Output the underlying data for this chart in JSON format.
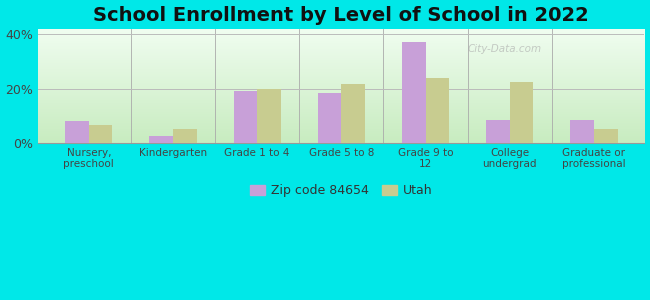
{
  "title": "School Enrollment by Level of School in 2022",
  "categories": [
    "Nursery,\npreschool",
    "Kindergarten",
    "Grade 1 to 4",
    "Grade 5 to 8",
    "Grade 9 to\n12",
    "College\nundergrad",
    "Graduate or\nprofessional"
  ],
  "zip_values": [
    8.0,
    2.5,
    19.0,
    18.5,
    37.0,
    8.5,
    8.5
  ],
  "utah_values": [
    6.5,
    5.0,
    20.0,
    21.5,
    24.0,
    22.5,
    5.0
  ],
  "zip_color": "#c8a0d8",
  "utah_color": "#c8cc90",
  "ylim": [
    0,
    42
  ],
  "yticks": [
    0,
    20,
    40
  ],
  "ytick_labels": [
    "0%",
    "20%",
    "40%"
  ],
  "background_color": "#00e8e8",
  "legend_zip_label": "Zip code 84654",
  "legend_utah_label": "Utah",
  "title_fontsize": 14,
  "bar_width": 0.28,
  "watermark": "City-Data.com",
  "grad_top": "#f0fdf0",
  "grad_bottom": "#c8ecc0"
}
